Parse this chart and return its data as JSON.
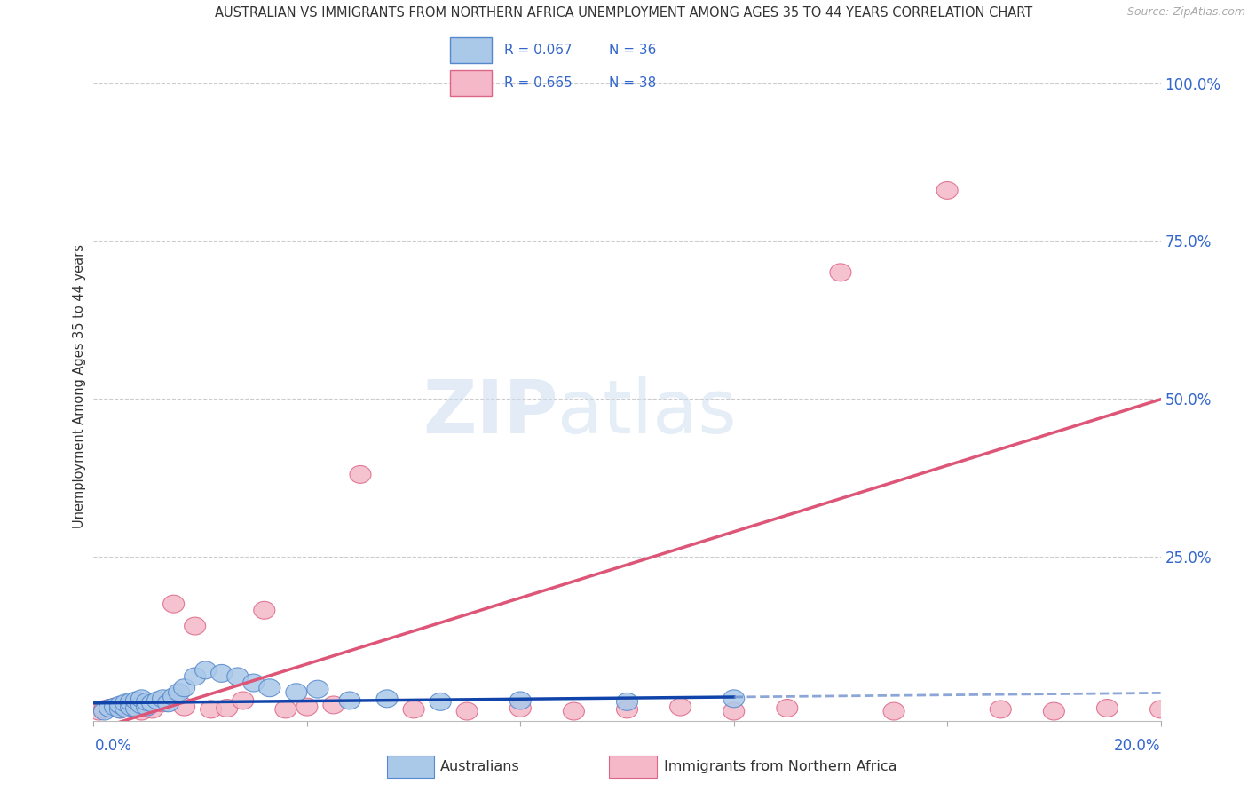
{
  "title": "AUSTRALIAN VS IMMIGRANTS FROM NORTHERN AFRICA UNEMPLOYMENT AMONG AGES 35 TO 44 YEARS CORRELATION CHART",
  "source": "Source: ZipAtlas.com",
  "ylabel": "Unemployment Among Ages 35 to 44 years",
  "ytick_labels": [
    "100.0%",
    "75.0%",
    "50.0%",
    "25.0%"
  ],
  "ytick_values": [
    1.0,
    0.75,
    0.5,
    0.25
  ],
  "xlim": [
    0.0,
    0.2
  ],
  "ylim": [
    -0.01,
    1.05
  ],
  "background_color": "#ffffff",
  "grid_color": "#cccccc",
  "australian_color": "#aac8e8",
  "australian_edge_color": "#5588cc",
  "immigrant_color": "#f4b8c8",
  "immigrant_edge_color": "#dd6688",
  "trend_australian_solid": "#1144aa",
  "trend_australian_dashed": "#6688cc",
  "trend_immigrant": "#dd5577",
  "R_aus": "0.067",
  "N_aus": "36",
  "R_imm": "0.665",
  "N_imm": "38",
  "aus_trend_slope": 0.08,
  "aus_trend_intercept": 0.018,
  "aus_trend_solid_end": 0.12,
  "imm_trend_slope": 2.62,
  "imm_trend_intercept": -0.025,
  "australian_x": [
    0.002,
    0.003,
    0.004,
    0.005,
    0.005,
    0.006,
    0.006,
    0.007,
    0.007,
    0.008,
    0.008,
    0.009,
    0.009,
    0.01,
    0.01,
    0.011,
    0.012,
    0.013,
    0.014,
    0.015,
    0.016,
    0.017,
    0.019,
    0.021,
    0.024,
    0.027,
    0.03,
    0.033,
    0.038,
    0.042,
    0.048,
    0.055,
    0.065,
    0.08,
    0.1,
    0.12
  ],
  "australian_y": [
    0.005,
    0.01,
    0.012,
    0.008,
    0.015,
    0.01,
    0.018,
    0.012,
    0.02,
    0.01,
    0.022,
    0.015,
    0.025,
    0.012,
    0.02,
    0.018,
    0.022,
    0.025,
    0.018,
    0.028,
    0.035,
    0.042,
    0.06,
    0.07,
    0.065,
    0.06,
    0.05,
    0.042,
    0.035,
    0.04,
    0.022,
    0.025,
    0.02,
    0.022,
    0.02,
    0.025
  ],
  "immigrant_x": [
    0.001,
    0.002,
    0.003,
    0.004,
    0.005,
    0.006,
    0.007,
    0.008,
    0.009,
    0.01,
    0.011,
    0.013,
    0.015,
    0.017,
    0.019,
    0.022,
    0.025,
    0.028,
    0.032,
    0.036,
    0.04,
    0.045,
    0.05,
    0.06,
    0.07,
    0.08,
    0.09,
    0.1,
    0.11,
    0.12,
    0.13,
    0.14,
    0.15,
    0.16,
    0.17,
    0.18,
    0.19,
    0.2
  ],
  "immigrant_y": [
    0.005,
    0.008,
    0.01,
    0.012,
    0.008,
    0.015,
    0.01,
    0.018,
    0.005,
    0.012,
    0.008,
    0.018,
    0.175,
    0.012,
    0.14,
    0.008,
    0.01,
    0.022,
    0.165,
    0.008,
    0.012,
    0.015,
    0.38,
    0.008,
    0.005,
    0.01,
    0.005,
    0.008,
    0.012,
    0.005,
    0.01,
    0.7,
    0.005,
    0.83,
    0.008,
    0.005,
    0.01,
    0.008
  ]
}
